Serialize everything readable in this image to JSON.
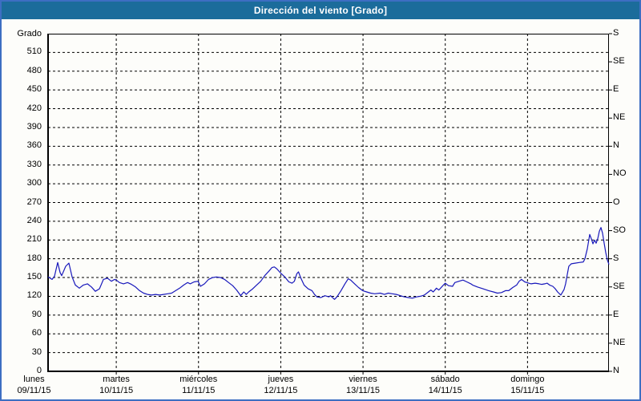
{
  "title": "Dirección del viento [Grado]",
  "colors": {
    "titlebar_bg": "#1b6c9b",
    "title_text": "#ffffff",
    "window_border": "#3d6ec2",
    "plot_bg": "#fdfdfa",
    "grid": "#000000",
    "line": "#1818bb"
  },
  "chart_data": {
    "type": "line",
    "title": "Dirección del viento [Grado]",
    "ylabel": "Grado",
    "ylim": [
      0,
      540
    ],
    "grid": "dashed",
    "legend": "none",
    "y_ticks_left": [
      0,
      30,
      60,
      90,
      120,
      150,
      180,
      210,
      240,
      270,
      300,
      330,
      360,
      390,
      420,
      450,
      480,
      510
    ],
    "y_ticks_right": [
      {
        "value": 0,
        "label": "N"
      },
      {
        "value": 45,
        "label": "NE"
      },
      {
        "value": 90,
        "label": "E"
      },
      {
        "value": 135,
        "label": "SE"
      },
      {
        "value": 180,
        "label": "S"
      },
      {
        "value": 225,
        "label": "SO"
      },
      {
        "value": 270,
        "label": "O"
      },
      {
        "value": 315,
        "label": "NO"
      },
      {
        "value": 360,
        "label": "N"
      },
      {
        "value": 405,
        "label": "NE"
      },
      {
        "value": 450,
        "label": "E"
      },
      {
        "value": 495,
        "label": "SE"
      },
      {
        "value": 540,
        "label": "S"
      }
    ],
    "x_days": [
      {
        "weekday": "lunes",
        "date": "09/11/15"
      },
      {
        "weekday": "martes",
        "date": "10/11/15"
      },
      {
        "weekday": "miércoles",
        "date": "11/11/15"
      },
      {
        "weekday": "jueves",
        "date": "12/11/15"
      },
      {
        "weekday": "viernes",
        "date": "13/11/15"
      },
      {
        "weekday": "sábado",
        "date": "14/11/15"
      },
      {
        "weekday": "domingo",
        "date": "15/11/15"
      }
    ],
    "x_unit": "days since lunes 09/11/15 00:00",
    "x_range_days": [
      0.171,
      6.99
    ],
    "series": [
      {
        "name": "Dirección del viento",
        "color": "#1818bb",
        "points": [
          [
            0.171,
            151
          ],
          [
            0.22,
            147
          ],
          [
            0.249,
            152
          ],
          [
            0.288,
            174
          ],
          [
            0.317,
            158
          ],
          [
            0.337,
            153
          ],
          [
            0.385,
            168
          ],
          [
            0.424,
            173
          ],
          [
            0.463,
            151
          ],
          [
            0.502,
            138
          ],
          [
            0.551,
            133
          ],
          [
            0.6,
            138
          ],
          [
            0.649,
            140
          ],
          [
            0.698,
            135
          ],
          [
            0.746,
            128
          ],
          [
            0.795,
            132
          ],
          [
            0.844,
            147
          ],
          [
            0.893,
            149
          ],
          [
            0.941,
            144
          ],
          [
            0.98,
            147
          ],
          [
            1.0,
            146
          ],
          [
            1.039,
            142
          ],
          [
            1.088,
            140
          ],
          [
            1.137,
            142
          ],
          [
            1.185,
            139
          ],
          [
            1.234,
            135
          ],
          [
            1.283,
            129
          ],
          [
            1.332,
            125
          ],
          [
            1.38,
            123
          ],
          [
            1.429,
            122
          ],
          [
            1.478,
            123
          ],
          [
            1.527,
            122
          ],
          [
            1.576,
            123
          ],
          [
            1.624,
            124
          ],
          [
            1.673,
            125
          ],
          [
            1.722,
            129
          ],
          [
            1.771,
            133
          ],
          [
            1.82,
            138
          ],
          [
            1.868,
            142
          ],
          [
            1.898,
            140
          ],
          [
            1.946,
            143
          ],
          [
            1.995,
            144
          ],
          [
            2.024,
            136
          ],
          [
            2.073,
            140
          ],
          [
            2.122,
            147
          ],
          [
            2.171,
            150
          ],
          [
            2.22,
            151
          ],
          [
            2.268,
            150
          ],
          [
            2.317,
            147
          ],
          [
            2.366,
            142
          ],
          [
            2.415,
            137
          ],
          [
            2.463,
            130
          ],
          [
            2.502,
            123
          ],
          [
            2.512,
            121
          ],
          [
            2.551,
            127
          ],
          [
            2.58,
            123
          ],
          [
            2.61,
            127
          ],
          [
            2.659,
            132
          ],
          [
            2.707,
            138
          ],
          [
            2.756,
            144
          ],
          [
            2.805,
            153
          ],
          [
            2.854,
            160
          ],
          [
            2.893,
            166
          ],
          [
            2.922,
            167
          ],
          [
            2.951,
            164
          ],
          [
            3.0,
            157
          ],
          [
            3.049,
            151
          ],
          [
            3.098,
            143
          ],
          [
            3.137,
            141
          ],
          [
            3.166,
            144
          ],
          [
            3.195,
            156
          ],
          [
            3.215,
            159
          ],
          [
            3.244,
            149
          ],
          [
            3.283,
            138
          ],
          [
            3.332,
            132
          ],
          [
            3.38,
            129
          ],
          [
            3.41,
            123
          ],
          [
            3.439,
            119
          ],
          [
            3.488,
            118
          ],
          [
            3.537,
            121
          ],
          [
            3.585,
            119
          ],
          [
            3.605,
            121
          ],
          [
            3.654,
            115
          ],
          [
            3.683,
            119
          ],
          [
            3.732,
            129
          ],
          [
            3.78,
            140
          ],
          [
            3.82,
            148
          ],
          [
            3.849,
            146
          ],
          [
            3.898,
            140
          ],
          [
            3.946,
            134
          ],
          [
            3.995,
            129
          ],
          [
            4.044,
            127
          ],
          [
            4.093,
            125
          ],
          [
            4.141,
            124
          ],
          [
            4.21,
            125
          ],
          [
            4.259,
            123
          ],
          [
            4.307,
            125
          ],
          [
            4.356,
            124
          ],
          [
            4.405,
            123
          ],
          [
            4.454,
            121
          ],
          [
            4.502,
            119
          ],
          [
            4.551,
            118
          ],
          [
            4.6,
            117
          ],
          [
            4.649,
            119
          ],
          [
            4.698,
            120
          ],
          [
            4.746,
            122
          ],
          [
            4.795,
            127
          ],
          [
            4.824,
            130
          ],
          [
            4.854,
            127
          ],
          [
            4.893,
            133
          ],
          [
            4.922,
            130
          ],
          [
            4.971,
            137
          ],
          [
            5.0,
            141
          ],
          [
            5.039,
            137
          ],
          [
            5.088,
            136
          ],
          [
            5.117,
            142
          ],
          [
            5.166,
            144
          ],
          [
            5.215,
            146
          ],
          [
            5.263,
            143
          ],
          [
            5.312,
            140
          ],
          [
            5.332,
            138
          ],
          [
            5.39,
            135
          ],
          [
            5.459,
            132
          ],
          [
            5.527,
            129
          ],
          [
            5.585,
            127
          ],
          [
            5.634,
            125
          ],
          [
            5.683,
            126
          ],
          [
            5.732,
            129
          ],
          [
            5.771,
            129
          ],
          [
            5.82,
            134
          ],
          [
            5.868,
            138
          ],
          [
            5.898,
            144
          ],
          [
            5.927,
            147
          ],
          [
            5.966,
            143
          ],
          [
            6.015,
            141
          ],
          [
            6.044,
            140
          ],
          [
            6.093,
            141
          ],
          [
            6.141,
            140
          ],
          [
            6.171,
            139
          ],
          [
            6.21,
            140
          ],
          [
            6.239,
            141
          ],
          [
            6.268,
            138
          ],
          [
            6.307,
            136
          ],
          [
            6.337,
            132
          ],
          [
            6.366,
            127
          ],
          [
            6.405,
            122
          ],
          [
            6.444,
            131
          ],
          [
            6.463,
            140
          ],
          [
            6.483,
            155
          ],
          [
            6.502,
            168
          ],
          [
            6.532,
            172
          ],
          [
            6.58,
            173
          ],
          [
            6.629,
            174
          ],
          [
            6.678,
            175
          ],
          [
            6.698,
            180
          ],
          [
            6.727,
            196
          ],
          [
            6.756,
            219
          ],
          [
            6.776,
            212
          ],
          [
            6.795,
            204
          ],
          [
            6.815,
            210
          ],
          [
            6.834,
            205
          ],
          [
            6.854,
            212
          ],
          [
            6.873,
            224
          ],
          [
            6.893,
            230
          ],
          [
            6.912,
            221
          ],
          [
            6.932,
            205
          ],
          [
            6.951,
            190
          ],
          [
            6.971,
            178
          ],
          [
            6.99,
            171
          ]
        ]
      }
    ]
  }
}
